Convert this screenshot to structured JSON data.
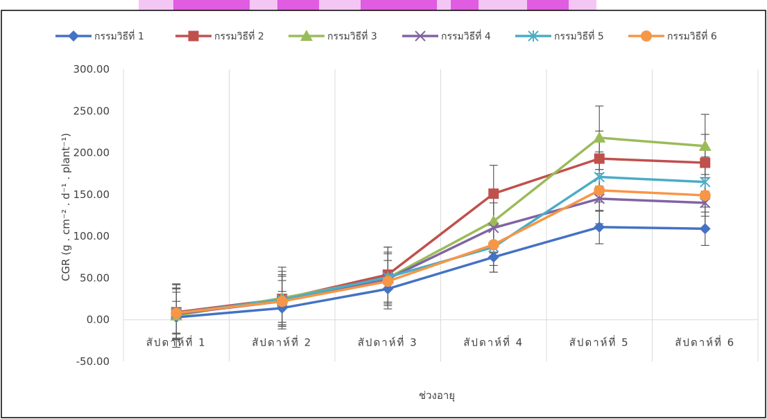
{
  "chart_data": {
    "type": "line",
    "title": "",
    "xlabel": "ช่วงอายุ",
    "ylabel": "CGR (g . cm⁻² . d⁻¹ . plant⁻¹)",
    "categories": [
      "สัปดาห์ที่ 1",
      "สัปดาห์ที่ 2",
      "สัปดาห์ที่ 3",
      "สัปดาห์ที่ 4",
      "สัปดาห์ที่ 5",
      "สัปดาห์ที่ 6"
    ],
    "ylim": [
      -50,
      300
    ],
    "yticks": [
      -50,
      0,
      50,
      100,
      150,
      200,
      250,
      300
    ],
    "ytick_labels": [
      "-50.00",
      "0.00",
      "50.00",
      "100.00",
      "150.00",
      "200.00",
      "250.00",
      "300.00"
    ],
    "grid": "vertical",
    "legend_position": "top",
    "series": [
      {
        "name": "กรรมวิธีที่ 1",
        "color": "#4472C4",
        "marker": "diamond",
        "values": [
          3,
          14,
          37,
          75,
          111,
          109
        ],
        "err": [
          19,
          20,
          20,
          18,
          20,
          20
        ]
      },
      {
        "name": "กรรมวิธีที่ 2",
        "color": "#C0504D",
        "marker": "square",
        "values": [
          9,
          25,
          54,
          151,
          193,
          188
        ],
        "err": [
          33,
          33,
          33,
          34,
          33,
          34
        ]
      },
      {
        "name": "กรรมวิธีที่ 3",
        "color": "#9BBB59",
        "marker": "triangle",
        "values": [
          5,
          26,
          50,
          118,
          218,
          208
        ],
        "err": [
          38,
          37,
          37,
          37,
          38,
          38
        ]
      },
      {
        "name": "กรรมวิธีที่ 4",
        "color": "#8064A2",
        "marker": "x",
        "values": [
          7,
          22,
          49,
          110,
          145,
          140
        ],
        "err": [
          30,
          30,
          30,
          30,
          30,
          30
        ]
      },
      {
        "name": "กรรมวิธีที่ 5",
        "color": "#4BACC6",
        "marker": "asterisk",
        "values": [
          8,
          24,
          51,
          87,
          171,
          165
        ],
        "err": [
          30,
          30,
          30,
          30,
          30,
          30
        ]
      },
      {
        "name": "กรรมวิธีที่ 6",
        "color": "#F79646",
        "marker": "circle",
        "values": [
          8,
          22,
          46,
          90,
          155,
          149
        ],
        "err": [
          25,
          25,
          25,
          25,
          25,
          25
        ]
      }
    ]
  }
}
